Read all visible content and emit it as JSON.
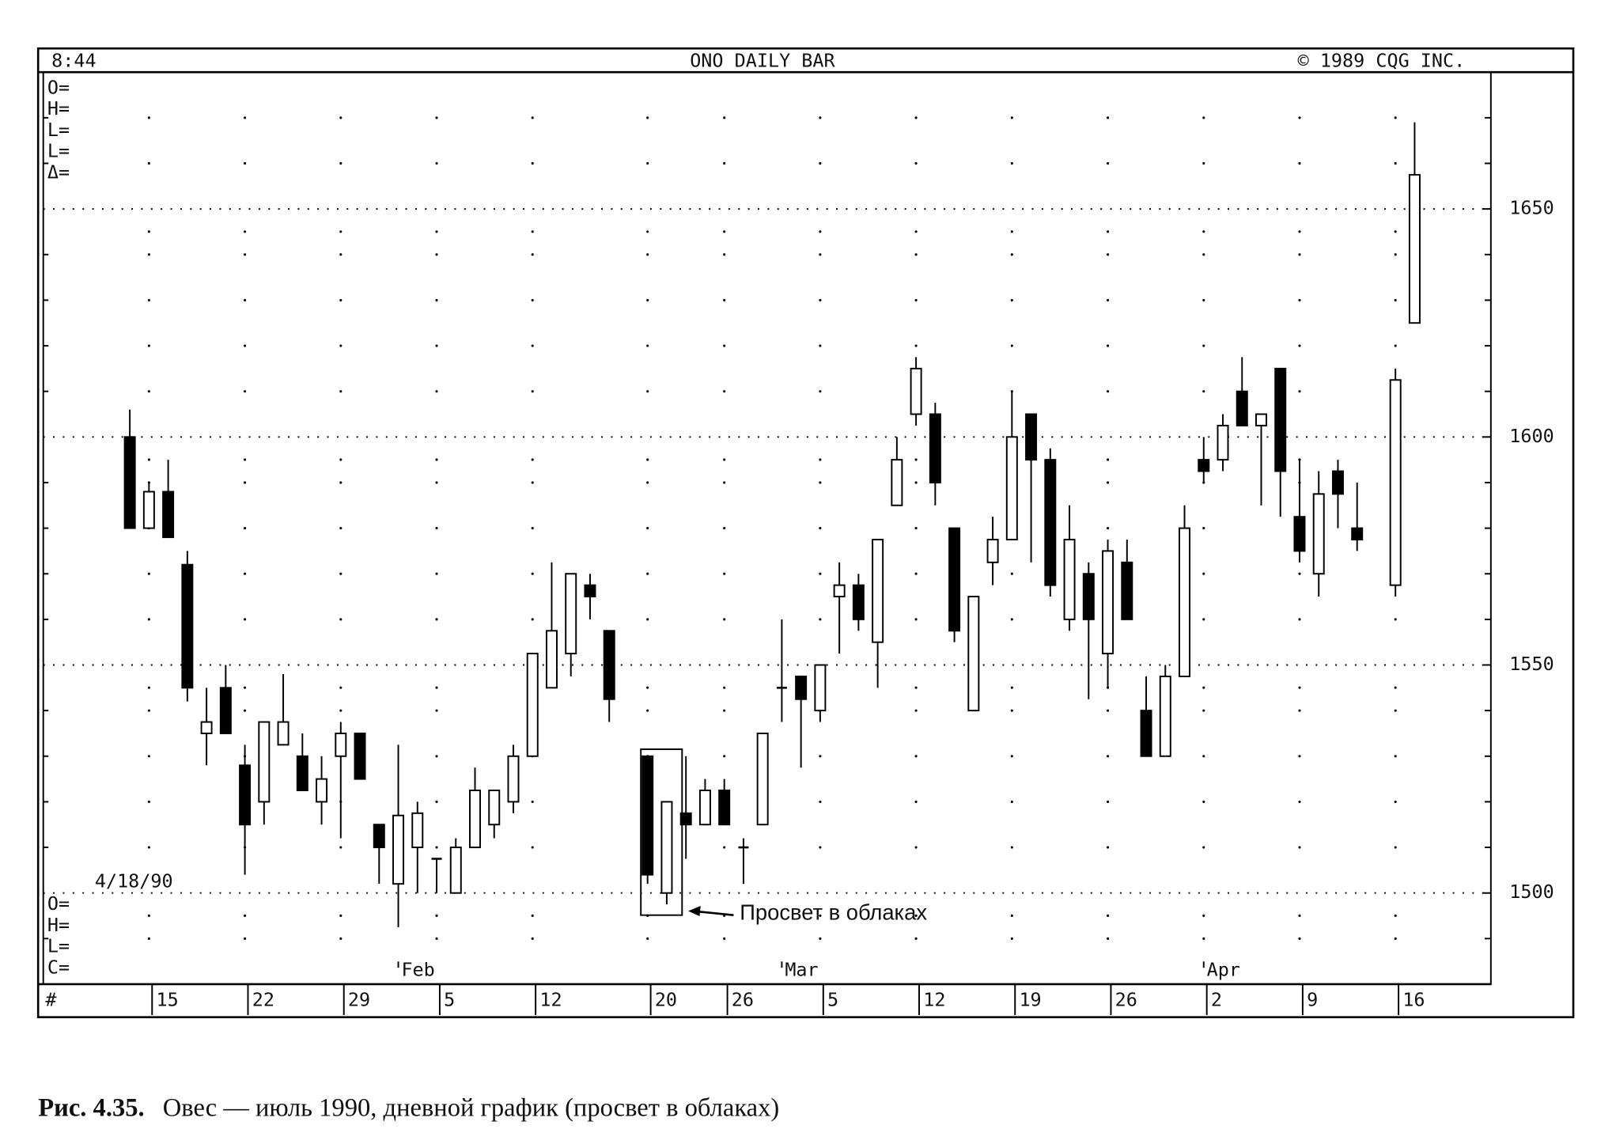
{
  "chart_data": {
    "type": "candlestick",
    "title": "ONO DAILY BAR",
    "time": "8:44",
    "copyright": "© 1989 CQG INC.",
    "header_fields": [
      "O=",
      "H=",
      "L=",
      "L=",
      "Δ="
    ],
    "footer_fields": [
      "O=",
      "H=",
      "L=",
      "C="
    ],
    "date": "4/18/90",
    "corner": "#",
    "annotation": "Просвет в облаках",
    "categories": [
      null,
      "15",
      null,
      null,
      null,
      null,
      "22",
      null,
      null,
      null,
      null,
      "29",
      null,
      null,
      null,
      null,
      "5",
      null,
      null,
      null,
      null,
      "12",
      null,
      null,
      null,
      null,
      null,
      "20",
      null,
      null,
      null,
      "26",
      null,
      null,
      null,
      null,
      "5",
      null,
      null,
      null,
      null,
      "12",
      null,
      null,
      null,
      null,
      "19",
      null,
      null,
      null,
      null,
      "26",
      null,
      null,
      null,
      null,
      "2",
      null,
      null,
      null,
      null,
      "9",
      null,
      null,
      null,
      null,
      "16",
      null
    ],
    "months": [
      null,
      null,
      null,
      null,
      null,
      null,
      null,
      null,
      null,
      null,
      null,
      null,
      null,
      null,
      "Feb",
      null,
      null,
      null,
      null,
      null,
      null,
      null,
      null,
      null,
      null,
      null,
      null,
      null,
      null,
      null,
      null,
      null,
      null,
      null,
      "Mar",
      null,
      null,
      null,
      null,
      null,
      null,
      null,
      null,
      null,
      null,
      null,
      null,
      null,
      null,
      null,
      null,
      null,
      null,
      null,
      null,
      null,
      "Apr",
      null,
      null,
      null,
      null,
      null,
      null,
      null,
      null,
      null,
      null,
      null
    ],
    "open": [
      1600,
      1580,
      1588,
      1572,
      1535,
      1545,
      1528,
      1520,
      1532.5,
      1530,
      1520,
      1530,
      1535,
      1515,
      1502,
      1510,
      1507.5,
      1500,
      1510,
      1515,
      1520,
      1530,
      1545,
      1552.5,
      1567.5,
      1557.5,
      null,
      1530,
      1500,
      1517.5,
      1515,
      1522.5,
      1510,
      1515,
      1545,
      1547.5,
      1540,
      1565,
      1567.5,
      1555,
      1585,
      1605,
      1605,
      1580,
      1540,
      1572.5,
      1577.5,
      1605,
      1595,
      1560,
      1570,
      1552.5,
      1572.5,
      1540,
      1530,
      1547.5,
      1595,
      1595,
      1610,
      1602.5,
      1615,
      1582.5,
      1570,
      1592.5,
      1580,
      null,
      1567.5,
      1625
    ],
    "high": [
      1606,
      1590,
      1595,
      1575,
      1545,
      1550,
      1532.5,
      1537.5,
      1548,
      1535,
      1530,
      1537.5,
      1535,
      1515,
      1532.5,
      1520,
      1507.5,
      1512,
      1527.5,
      1522.5,
      1532.5,
      1552.5,
      1572.5,
      1570,
      1570,
      1557.5,
      null,
      1530,
      1520,
      1530,
      1525,
      1525,
      1512,
      1535,
      1560,
      1547.5,
      1550,
      1572.5,
      1570,
      1577.5,
      1600,
      1617.5,
      1607.5,
      1580,
      1565,
      1582.5,
      1610,
      1605,
      1597.5,
      1585,
      1572.5,
      1577.5,
      1577.5,
      1547.5,
      1550,
      1585,
      1600,
      1605,
      1617.5,
      1605,
      1615,
      1595,
      1592.5,
      1595,
      1590,
      null,
      1615,
      1669
    ],
    "low": [
      1580,
      1580,
      1578,
      1542,
      1528,
      1535,
      1504,
      1515,
      1532.5,
      1522.5,
      1515,
      1512,
      1525,
      1502,
      1492.5,
      1500,
      1500,
      1500,
      1510,
      1512,
      1517.5,
      1530,
      1545,
      1547.5,
      1560,
      1537.5,
      null,
      1502,
      1497.5,
      1507.5,
      1515,
      1515,
      1502,
      1515,
      1537.5,
      1527.5,
      1537.5,
      1552.5,
      1557.5,
      1545,
      1585,
      1602.5,
      1585,
      1555,
      1540,
      1567.5,
      1577.5,
      1572.5,
      1565,
      1557.5,
      1542.5,
      1545,
      1560,
      1530,
      1530,
      1547.5,
      1590,
      1592.5,
      1602.5,
      1585,
      1582.5,
      1572.5,
      1565,
      1580,
      1575,
      null,
      1565,
      1625
    ],
    "close": [
      1580,
      1588,
      1578,
      1545,
      1537.5,
      1535,
      1515,
      1537.5,
      1537.5,
      1522.5,
      1525,
      1535,
      1525,
      1510,
      1517,
      1517.5,
      1507.5,
      1510,
      1522.5,
      1522.5,
      1530,
      1552.5,
      1557.5,
      1570,
      1565,
      1542.5,
      null,
      1504,
      1520,
      1515,
      1522.5,
      1515,
      1510,
      1535,
      1545,
      1542.5,
      1550,
      1567.5,
      1560,
      1577.5,
      1595,
      1615,
      1590,
      1557.5,
      1565,
      1577.5,
      1600,
      1595,
      1567.5,
      1577.5,
      1560,
      1575,
      1560,
      1530,
      1547.5,
      1580,
      1592.5,
      1602.5,
      1602.5,
      1605,
      1592.5,
      1575,
      1587.5,
      1587.5,
      1577.5,
      null,
      1612.5,
      1657.5
    ],
    "up_color": "#ffffff",
    "down_color": "#000000",
    "ylim": [
      1480,
      1680
    ],
    "yticks": [
      1500,
      1550,
      1600,
      1650
    ],
    "minor_yticks": [
      1490,
      1510,
      1520,
      1530,
      1540,
      1560,
      1570,
      1580,
      1590,
      1610,
      1620,
      1630,
      1640,
      1660,
      1670
    ],
    "grid": true
  },
  "caption_label": "Рис. 4.35.",
  "caption_text": "Овес — июль 1990, дневной график (просвет в облаках)"
}
